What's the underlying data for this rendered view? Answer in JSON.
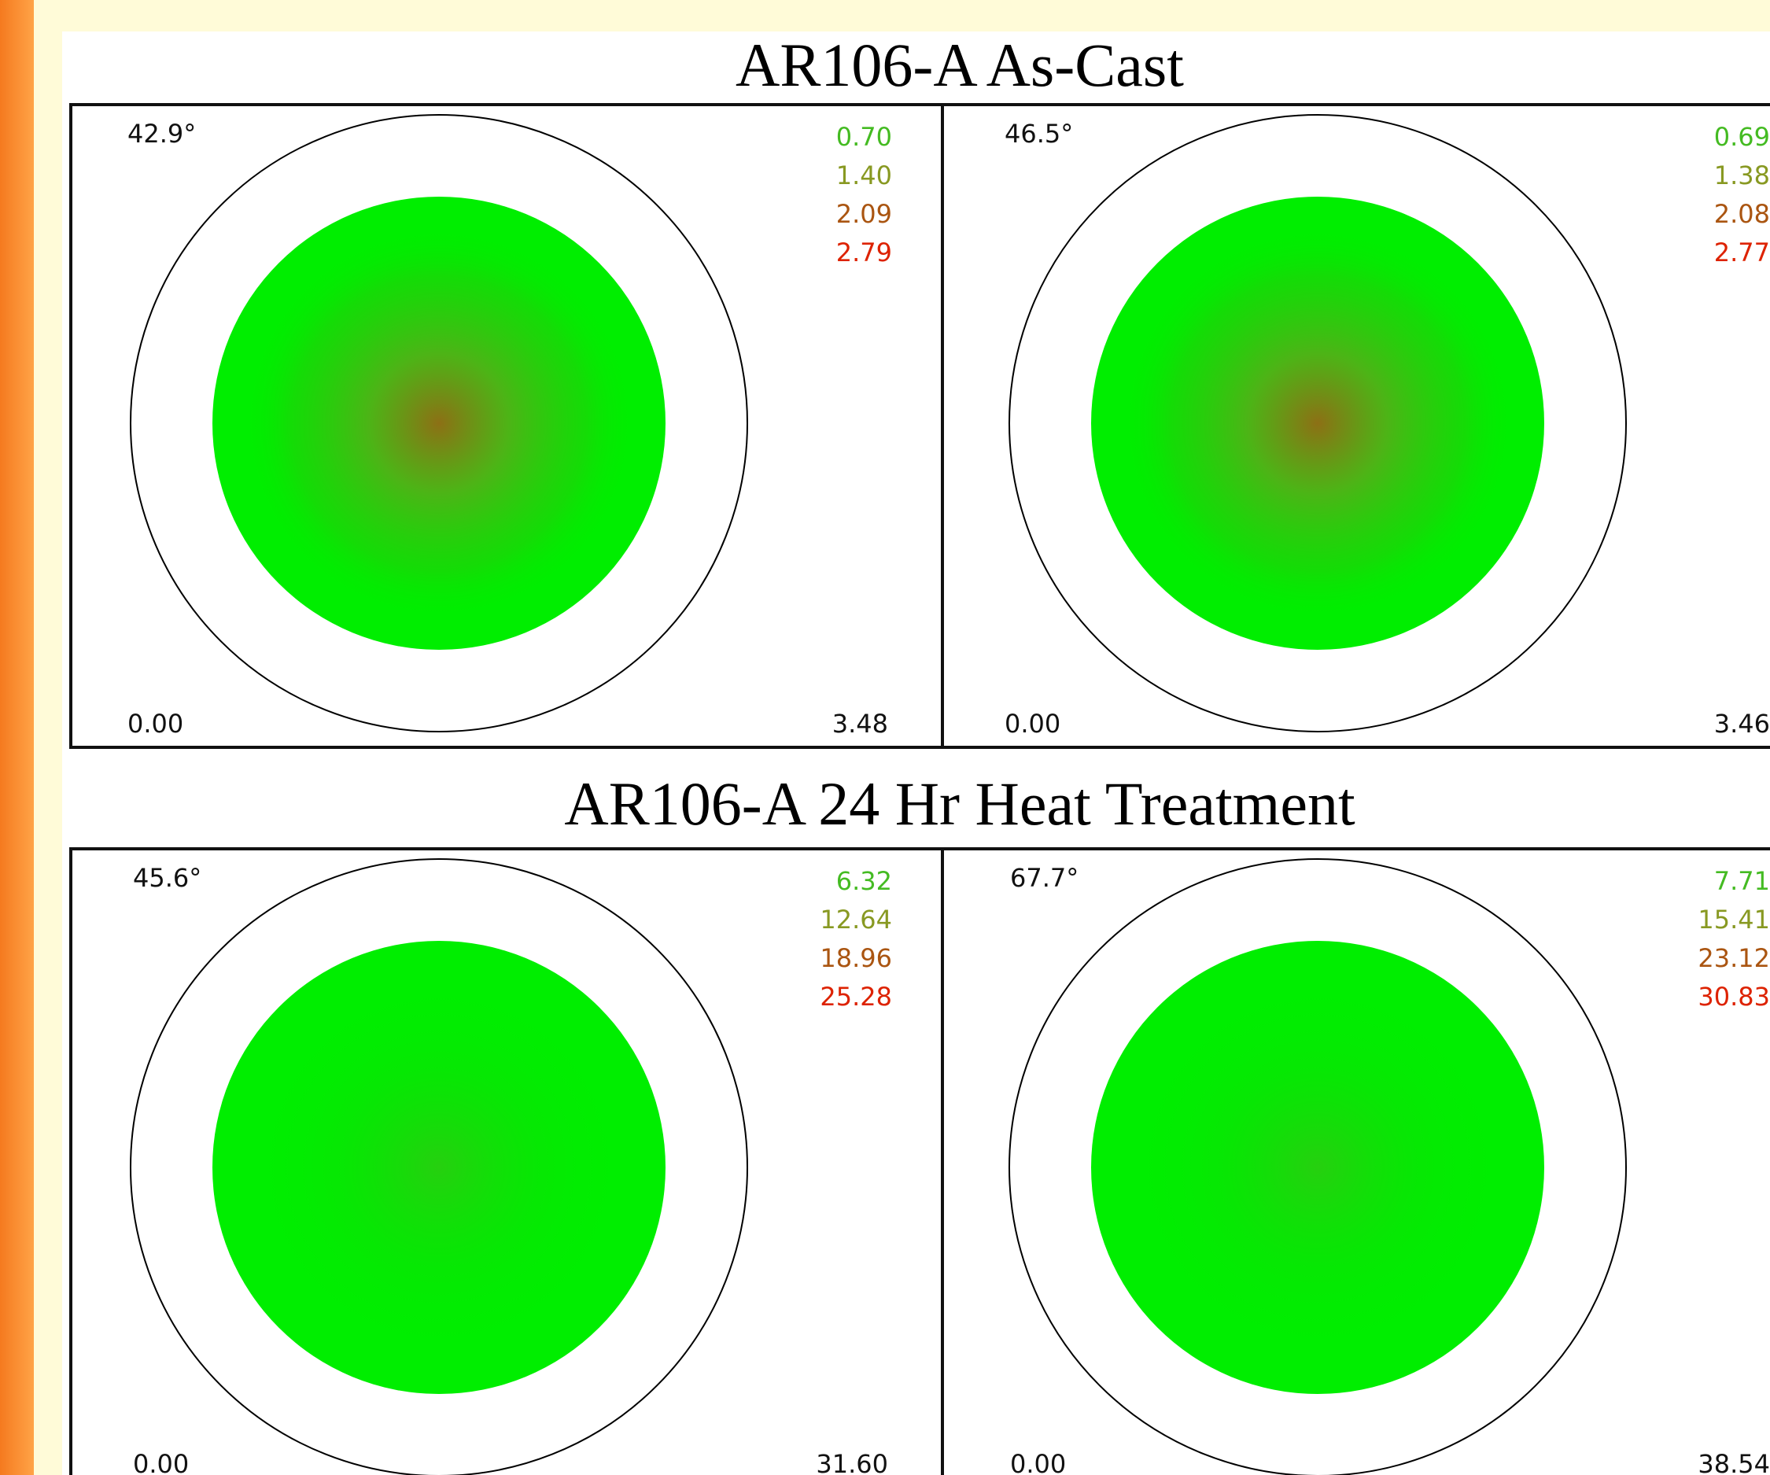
{
  "sections": [
    {
      "title": "AR106-A As-Cast",
      "panels": [
        {
          "max_angle": "42.9°",
          "levels": [
            "0.70",
            "1.40",
            "2.09",
            "2.79"
          ],
          "min": "0.00",
          "max": "3.48"
        },
        {
          "max_angle": "46.5°",
          "levels": [
            "0.69",
            "1.38",
            "2.08",
            "2.77"
          ],
          "min": "0.00",
          "max": "3.46"
        }
      ]
    },
    {
      "title": "AR106-A 24 Hr Heat Treatment",
      "panels": [
        {
          "max_angle": "45.6°",
          "levels": [
            "6.32",
            "12.64",
            "18.96",
            "25.28"
          ],
          "min": "0.00",
          "max": "31.60"
        },
        {
          "max_angle": "67.7°",
          "levels": [
            "7.71",
            "15.41",
            "23.12",
            "30.83"
          ],
          "min": "0.00",
          "max": "38.54"
        }
      ]
    }
  ]
}
